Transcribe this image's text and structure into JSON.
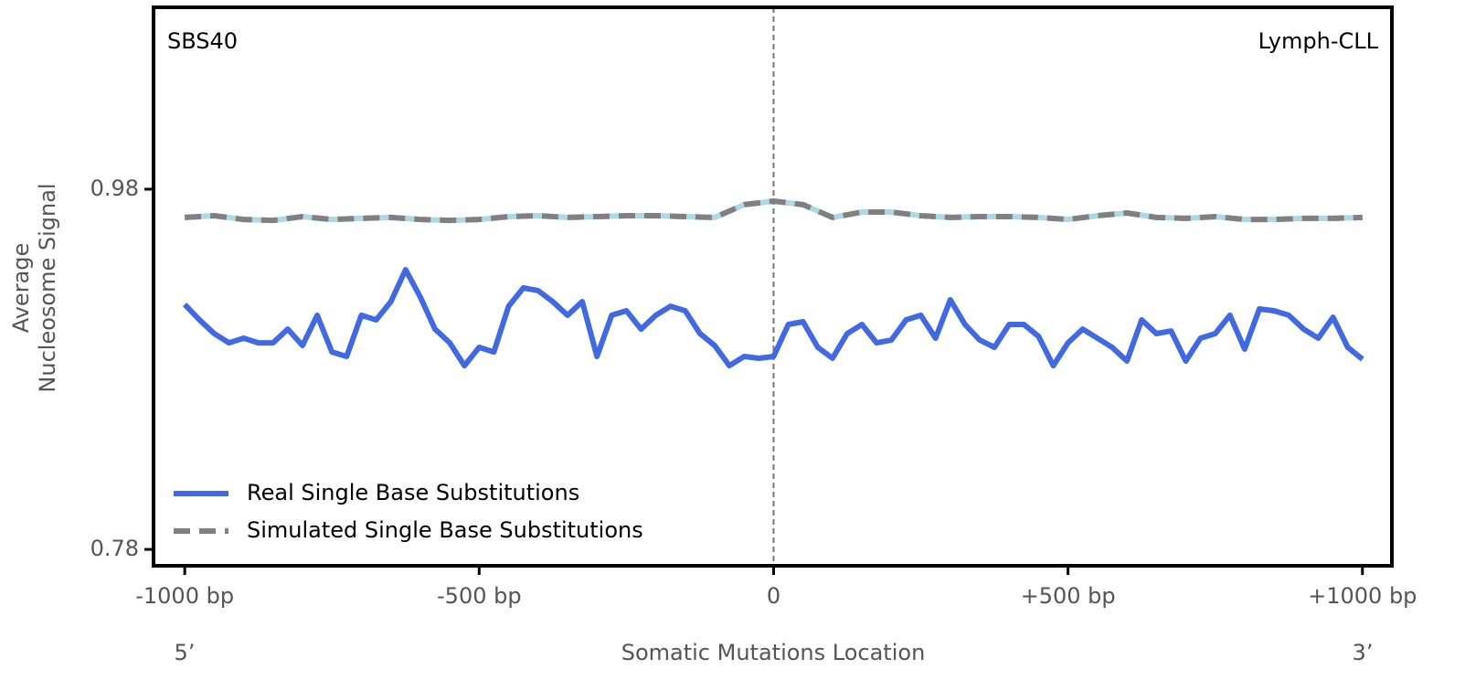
{
  "chart_data": {
    "type": "line",
    "annotations": {
      "top_left": "SBS40",
      "top_right": "Lymph-CLL",
      "x_left": "5’",
      "x_right": "3’"
    },
    "xlabel": "Somatic Mutations Location",
    "ylabel": [
      "Average",
      "Nucleosome Signal"
    ],
    "xlim": [
      -1053,
      1050
    ],
    "ylim": [
      0.7709,
      1.081
    ],
    "xticks": [
      {
        "value": -1000,
        "label": "-1000 bp"
      },
      {
        "value": -500,
        "label": "-500 bp"
      },
      0,
      {
        "value": 500,
        "label": "+500 bp"
      },
      {
        "value": 1000,
        "label": "+1000 bp"
      }
    ],
    "yticks": [
      0.78,
      0.98
    ],
    "vline": 0,
    "legend": "lower left",
    "series": [
      {
        "name": "Real Single Base Substitutions",
        "color": "#4169e1",
        "style": "solid",
        "x": [
          -1000,
          -975,
          -950,
          -925,
          -900,
          -875,
          -850,
          -825,
          -800,
          -775,
          -750,
          -725,
          -700,
          -675,
          -650,
          -625,
          -600,
          -575,
          -550,
          -525,
          -500,
          -475,
          -450,
          -425,
          -400,
          -375,
          -350,
          -325,
          -300,
          -275,
          -250,
          -225,
          -200,
          -175,
          -150,
          -125,
          -100,
          -75,
          -50,
          -25,
          0,
          25,
          50,
          75,
          100,
          125,
          150,
          175,
          200,
          225,
          250,
          275,
          300,
          325,
          350,
          375,
          400,
          425,
          450,
          475,
          500,
          525,
          550,
          575,
          600,
          625,
          650,
          675,
          700,
          725,
          750,
          775,
          800,
          825,
          850,
          875,
          900,
          925,
          950,
          975,
          1000
        ],
        "values": [
          0.916,
          0.9074,
          0.8998,
          0.8947,
          0.8973,
          0.8947,
          0.8947,
          0.9023,
          0.8932,
          0.91,
          0.8896,
          0.8871,
          0.91,
          0.9074,
          0.9176,
          0.9353,
          0.9201,
          0.9023,
          0.8947,
          0.882,
          0.8922,
          0.8896,
          0.915,
          0.9252,
          0.9237,
          0.9176,
          0.91,
          0.9176,
          0.8871,
          0.91,
          0.9125,
          0.9023,
          0.91,
          0.915,
          0.9125,
          0.8998,
          0.8932,
          0.882,
          0.8871,
          0.8861,
          0.8871,
          0.9049,
          0.9064,
          0.8922,
          0.8861,
          0.8998,
          0.9049,
          0.8947,
          0.8962,
          0.9074,
          0.91,
          0.8973,
          0.9186,
          0.9049,
          0.8962,
          0.8922,
          0.9049,
          0.9049,
          0.8983,
          0.882,
          0.8947,
          0.9023,
          0.8973,
          0.8922,
          0.8846,
          0.9074,
          0.8998,
          0.9013,
          0.8846,
          0.8973,
          0.8998,
          0.91,
          0.8912,
          0.9135,
          0.9125,
          0.91,
          0.9023,
          0.8973,
          0.9089,
          0.8922,
          0.8856
        ]
      },
      {
        "name": "Simulated Single Base Substitutions",
        "color": "#808080",
        "style": "dashed",
        "x": [
          -1000,
          -950,
          -900,
          -850,
          -800,
          -750,
          -700,
          -650,
          -600,
          -550,
          -500,
          -450,
          -400,
          -350,
          -300,
          -250,
          -200,
          -150,
          -100,
          -50,
          0,
          50,
          100,
          150,
          200,
          250,
          300,
          350,
          400,
          450,
          500,
          550,
          600,
          650,
          700,
          750,
          800,
          850,
          900,
          950,
          1000
        ],
        "values": [
          0.9643,
          0.9653,
          0.9632,
          0.9627,
          0.9648,
          0.9632,
          0.9638,
          0.9643,
          0.9632,
          0.9627,
          0.9632,
          0.9648,
          0.9653,
          0.9643,
          0.9648,
          0.9653,
          0.9653,
          0.9648,
          0.9643,
          0.9714,
          0.9734,
          0.9714,
          0.9643,
          0.9673,
          0.9673,
          0.9653,
          0.9643,
          0.9648,
          0.9648,
          0.9643,
          0.9632,
          0.9653,
          0.9668,
          0.9643,
          0.9638,
          0.9648,
          0.9632,
          0.9632,
          0.9638,
          0.9638,
          0.9643
        ]
      }
    ]
  }
}
